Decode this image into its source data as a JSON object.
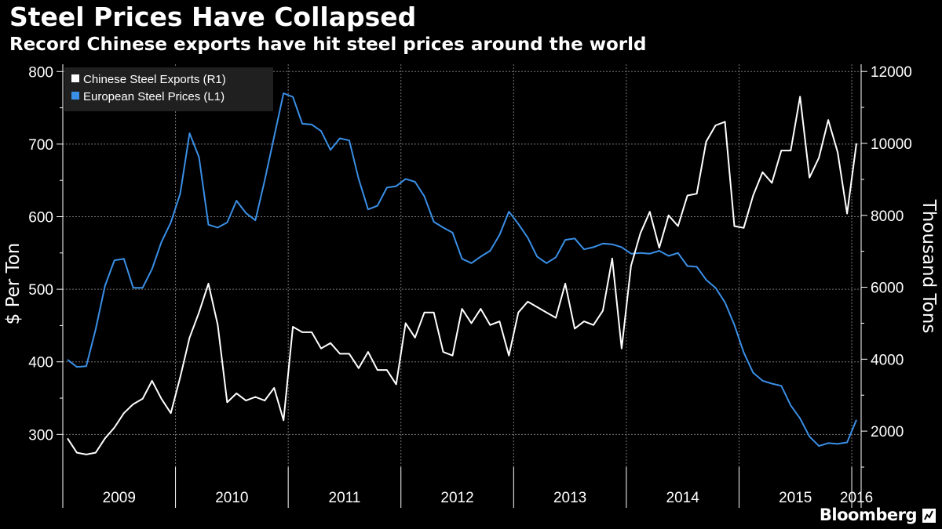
{
  "header": {
    "title": "Steel Prices Have Collapsed",
    "subtitle": "Record Chinese exports have hit steel prices around the world"
  },
  "branding": {
    "name": "Bloomberg",
    "icon": "bloomberg-chart-icon"
  },
  "chart_data": {
    "type": "line",
    "title": "Steel Prices Have Collapsed",
    "subtitle": "Record Chinese exports have hit steel prices around the world",
    "ylabel_left": "$ Per Ton",
    "ylabel_right": "Thousand Tons",
    "ylim_left": [
      255,
      810
    ],
    "ylim_right": [
      1000,
      12200
    ],
    "yticks_left": [
      300,
      400,
      500,
      600,
      700,
      800
    ],
    "yticks_right": [
      2000,
      4000,
      6000,
      8000,
      10000,
      12000
    ],
    "x_start": "2009-01",
    "x_end": "2016-02",
    "year_labels": [
      "2009",
      "2010",
      "2011",
      "2012",
      "2013",
      "2014",
      "2015",
      "2016"
    ],
    "grid": true,
    "legend": "top-left",
    "series": [
      {
        "name": "Chinese Steel Exports (R1)",
        "axis": "right",
        "color": "#ffffff",
        "values": [
          1800,
          1400,
          1350,
          1400,
          1800,
          2100,
          2500,
          2750,
          2900,
          3400,
          2900,
          2500,
          3500,
          4600,
          5300,
          6100,
          4950,
          2800,
          3050,
          2850,
          2950,
          2850,
          3200,
          2300,
          4900,
          4750,
          4750,
          4300,
          4450,
          4150,
          4150,
          3750,
          4200,
          3700,
          3700,
          3300,
          5000,
          4600,
          5300,
          5300,
          4200,
          4100,
          5400,
          5000,
          5400,
          4950,
          5050,
          4100,
          5300,
          5600,
          5450,
          5300,
          5150,
          6100,
          4850,
          5050,
          4950,
          5350,
          6800,
          4300,
          6600,
          7500,
          8100,
          7100,
          8000,
          7700,
          8550,
          8600,
          10050,
          10500,
          10600,
          7700,
          7650,
          8550,
          9200,
          8900,
          9800,
          9800,
          11300,
          9050,
          9600,
          10650,
          9750,
          8050,
          10000
        ]
      },
      {
        "name": "European Steel Prices (L1)",
        "axis": "left",
        "color": "#3a8fe6",
        "values": [
          403,
          393,
          394,
          445,
          505,
          540,
          542,
          502,
          502,
          528,
          565,
          592,
          632,
          715,
          682,
          589,
          585,
          592,
          622,
          605,
          595,
          650,
          710,
          770,
          765,
          728,
          727,
          718,
          692,
          708,
          705,
          652,
          610,
          615,
          640,
          642,
          652,
          648,
          628,
          593,
          585,
          578,
          542,
          536,
          545,
          553,
          575,
          607,
          590,
          571,
          545,
          536,
          544,
          568,
          570,
          555,
          558,
          563,
          562,
          558,
          549,
          550,
          549,
          553,
          546,
          550,
          532,
          531,
          513,
          502,
          482,
          451,
          413,
          385,
          374,
          370,
          367,
          340,
          322,
          297,
          284,
          288,
          287,
          289,
          320
        ]
      }
    ]
  }
}
